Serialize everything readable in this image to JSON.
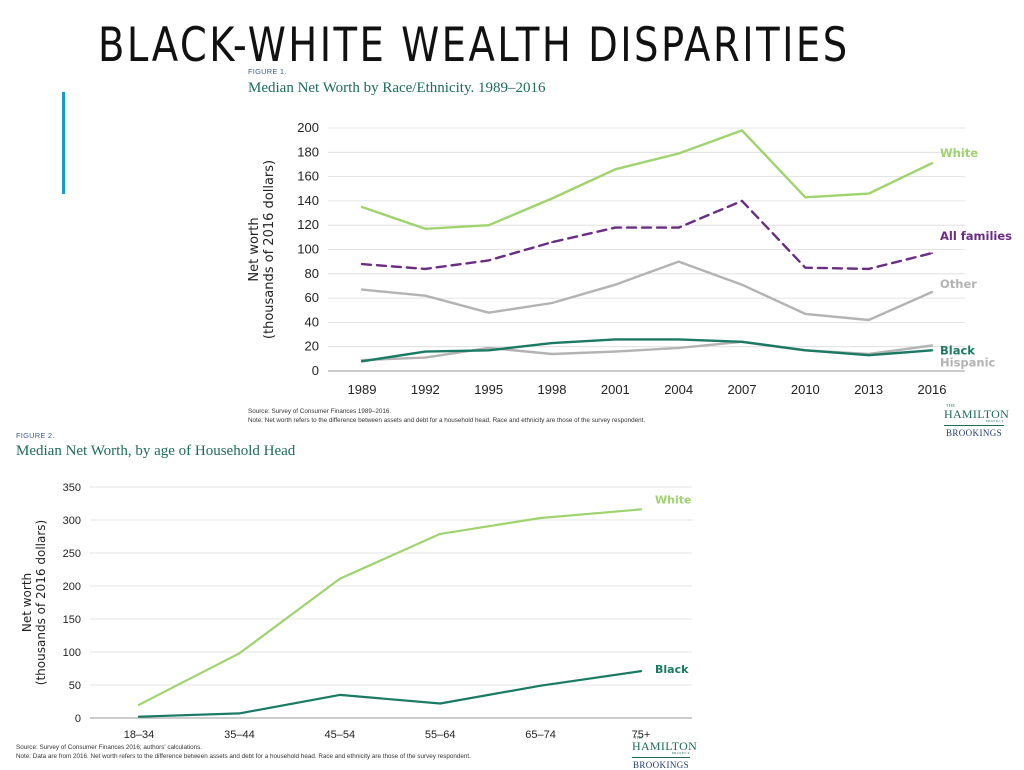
{
  "slide": {
    "title": "BLACK-WHITE WEALTH DISPARITIES",
    "accent_color": "#1b9bd3"
  },
  "colors": {
    "white": "#9fd36e",
    "all_families": "#6a2d83",
    "other": "#b3b3b3",
    "hispanic": "#b3b3b3",
    "black": "#1a7a63",
    "grid": "#dcdcdc"
  },
  "figure1": {
    "label": "FIGURE 1.",
    "title": "Median Net Worth by Race/Ethnicity. 1989–2016",
    "source": "Source: Survey of Consumer Finances 1989–2016.",
    "note": "Note: Net worth refers to the difference between assets and debt for a household head. Race and ethnicity are those of the survey respondent.",
    "logo": {
      "the": "THE",
      "name": "HAMILTON",
      "project": "PROJECT",
      "org": "BROOKINGS"
    }
  },
  "figure2": {
    "label": "FIGURE 2.",
    "title": "Median Net Worth, by age of Household Head",
    "source": "Source: Survey of Consumer Finances 2016; authors' calculations.",
    "note": "Note: Data are from 2016. Net worth refers to the difference between assets and debt for a household head. Race and ethnicity are those of the survey respondent.",
    "logo": {
      "the": "THE",
      "name": "HAMILTON",
      "project": "PROJECT",
      "org": "BROOKINGS"
    }
  },
  "chart_data": [
    {
      "type": "line",
      "title": "Median Net Worth by Race/Ethnicity. 1989–2016",
      "ylabel": [
        "Net worth",
        "(thousands of 2016 dollars)"
      ],
      "xlabel": "",
      "x": [
        "1989",
        "1992",
        "1995",
        "1998",
        "2001",
        "2004",
        "2007",
        "2010",
        "2013",
        "2016"
      ],
      "ylim": [
        0,
        200
      ],
      "yticks": [
        0,
        20,
        40,
        60,
        80,
        100,
        120,
        140,
        160,
        180,
        200
      ],
      "grid": true,
      "series": [
        {
          "name": "White",
          "color": "#9fd36e",
          "dashed": false,
          "values": [
            135,
            117,
            120,
            142,
            166,
            179,
            198,
            143,
            146,
            171
          ]
        },
        {
          "name": "All families",
          "color": "#6a2d83",
          "dashed": true,
          "values": [
            88,
            84,
            91,
            106,
            118,
            118,
            140,
            85,
            84,
            97
          ]
        },
        {
          "name": "Other",
          "color": "#b3b3b3",
          "dashed": false,
          "values": [
            67,
            62,
            48,
            56,
            71,
            90,
            71,
            47,
            42,
            65
          ]
        },
        {
          "name": "Hispanic",
          "color": "#b3b3b3",
          "dashed": false,
          "values": [
            9,
            11,
            19,
            14,
            16,
            19,
            24,
            17,
            14,
            21
          ]
        },
        {
          "name": "Black",
          "color": "#1a7a63",
          "dashed": false,
          "values": [
            8,
            16,
            17,
            23,
            26,
            26,
            24,
            17,
            13,
            17
          ]
        }
      ]
    },
    {
      "type": "line",
      "title": "Median Net Worth, by age of Household Head",
      "ylabel": [
        "Net worth",
        "(thousands of 2016 dollars)"
      ],
      "xlabel": "",
      "x": [
        "18–34",
        "35–44",
        "45–54",
        "55–64",
        "65–74",
        "75+"
      ],
      "ylim": [
        0,
        350
      ],
      "yticks": [
        0,
        50,
        100,
        150,
        200,
        250,
        300,
        350
      ],
      "grid": true,
      "series": [
        {
          "name": "White",
          "color": "#9fd36e",
          "dashed": false,
          "values": [
            20,
            98,
            211,
            279,
            303,
            316
          ]
        },
        {
          "name": "Black",
          "color": "#1a7a63",
          "dashed": false,
          "values": [
            2,
            7,
            35,
            22,
            49,
            71
          ]
        }
      ]
    }
  ]
}
